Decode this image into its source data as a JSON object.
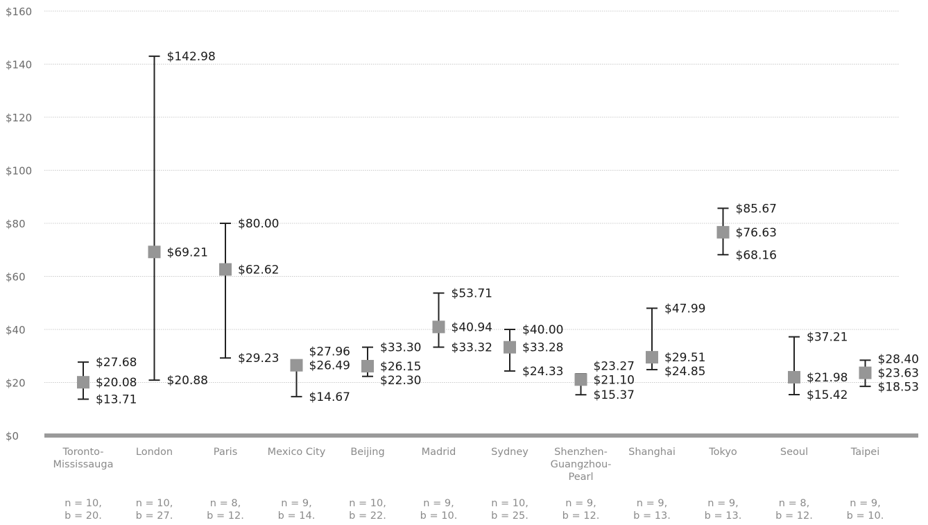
{
  "chart_data": {
    "type": "error-bar",
    "ylim": [
      0,
      160
    ],
    "y_ticks": [
      "$0",
      "$20",
      "$40",
      "$60",
      "$80",
      "$100",
      "$120",
      "$140",
      "$160"
    ],
    "y_tick_values": [
      0,
      20,
      40,
      60,
      80,
      100,
      120,
      140,
      160
    ],
    "grid": true,
    "colors": {
      "marker": "#969696",
      "whisker": "#222222",
      "grid": "#c9c9c9",
      "baseline": "#9a9a9a"
    },
    "categories": [
      {
        "name": "Toronto-\nMississauga",
        "n_text": "n = 10,\nb = 20.",
        "low": 13.71,
        "mid": 20.08,
        "high": 27.68,
        "low_label": "$13.71",
        "mid_label": "$20.08",
        "high_label": "$27.68"
      },
      {
        "name": "London",
        "n_text": "n = 10,\nb = 27.",
        "low": 20.88,
        "mid": 69.21,
        "high": 142.98,
        "low_label": "$20.88",
        "mid_label": "$69.21",
        "high_label": "$142.98"
      },
      {
        "name": "Paris",
        "n_text": "n = 8,\nb = 12.",
        "low": 29.23,
        "mid": 62.62,
        "high": 80.0,
        "low_label": "$29.23",
        "mid_label": "$62.62",
        "high_label": "$80.00"
      },
      {
        "name": "Mexico City",
        "n_text": "n = 9,\nb = 14.",
        "low": 14.67,
        "mid": 26.49,
        "high": 27.96,
        "low_label": "$14.67",
        "mid_label": "$26.49",
        "high_label": "$27.96"
      },
      {
        "name": "Beijing",
        "n_text": "n = 10,\nb = 22.",
        "low": 22.3,
        "mid": 26.15,
        "high": 33.3,
        "low_label": "$22.30",
        "mid_label": "$26.15",
        "high_label": "$33.30"
      },
      {
        "name": "Madrid",
        "n_text": "n = 9,\nb = 10.",
        "low": 33.32,
        "mid": 40.94,
        "high": 53.71,
        "low_label": "$33.32",
        "mid_label": "$40.94",
        "high_label": "$53.71"
      },
      {
        "name": "Sydney",
        "n_text": "n = 10,\nb = 25.",
        "low": 24.33,
        "mid": 33.28,
        "high": 40.0,
        "low_label": "$24.33",
        "mid_label": "$33.28",
        "high_label": "$40.00"
      },
      {
        "name": "Shenzhen-\nGuangzhou-\nPearl",
        "n_text": "n = 9,\nb = 12.",
        "low": 15.37,
        "mid": 21.1,
        "high": 23.27,
        "low_label": "$15.37",
        "mid_label": "$21.10",
        "high_label": "$23.27"
      },
      {
        "name": "Shanghai",
        "n_text": "n = 9,\nb = 13.",
        "low": 24.85,
        "mid": 29.51,
        "high": 47.99,
        "low_label": "$24.85",
        "mid_label": "$29.51",
        "high_label": "$47.99"
      },
      {
        "name": "Tokyo",
        "n_text": "n = 9,\nb = 13.",
        "low": 68.16,
        "mid": 76.63,
        "high": 85.67,
        "low_label": "$68.16",
        "mid_label": "$76.63",
        "high_label": "$85.67"
      },
      {
        "name": "Seoul",
        "n_text": "n = 8,\nb = 12.",
        "low": 15.42,
        "mid": 21.98,
        "high": 37.21,
        "low_label": "$15.42",
        "mid_label": "$21.98",
        "high_label": "$37.21"
      },
      {
        "name": "Taipei",
        "n_text": "n = 9,\nb = 10.",
        "low": 18.53,
        "mid": 23.63,
        "high": 28.4,
        "low_label": "$18.53",
        "mid_label": "$23.63",
        "high_label": "$28.40"
      }
    ]
  }
}
